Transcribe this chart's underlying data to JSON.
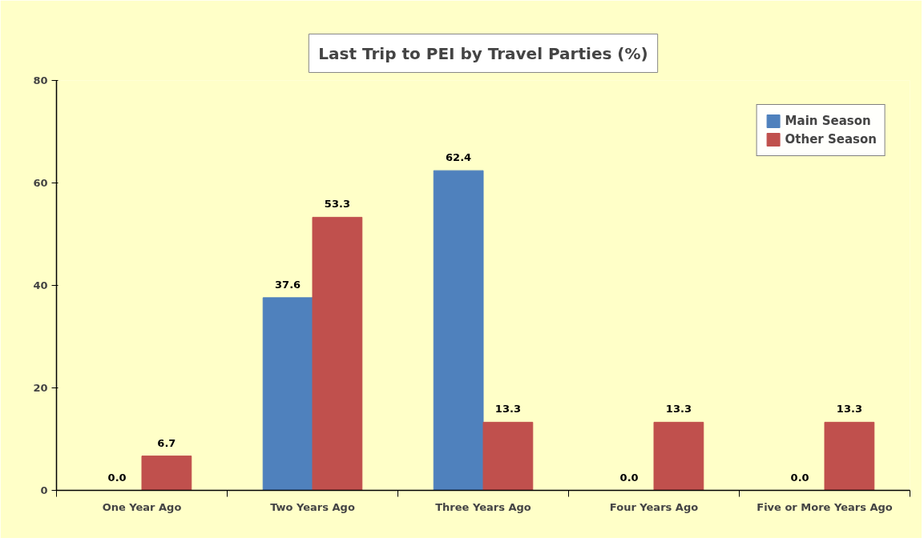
{
  "chart_data": {
    "type": "bar",
    "title": "Last Trip to PEI by Travel Parties (%)",
    "categories": [
      "One Year Ago",
      "Two Years Ago",
      "Three Years Ago",
      "Four Years Ago",
      "Five or More Years Ago"
    ],
    "series": [
      {
        "name": "Main Season",
        "color": "#4f81bd",
        "values": [
          0.0,
          37.6,
          62.4,
          0.0,
          0.0
        ],
        "value_labels": [
          "0.0",
          "37.6",
          "62.4",
          "0.0",
          "0.0"
        ]
      },
      {
        "name": "Other Season",
        "color": "#c0504d",
        "values": [
          6.7,
          53.3,
          13.3,
          13.3,
          13.3
        ],
        "value_labels": [
          "6.7",
          "53.3",
          "13.3",
          "13.3",
          "13.3"
        ]
      }
    ],
    "ylim": [
      0,
      80
    ],
    "yticks": [
      0,
      20,
      40,
      60,
      80
    ],
    "grid": false,
    "legend": "top right"
  }
}
